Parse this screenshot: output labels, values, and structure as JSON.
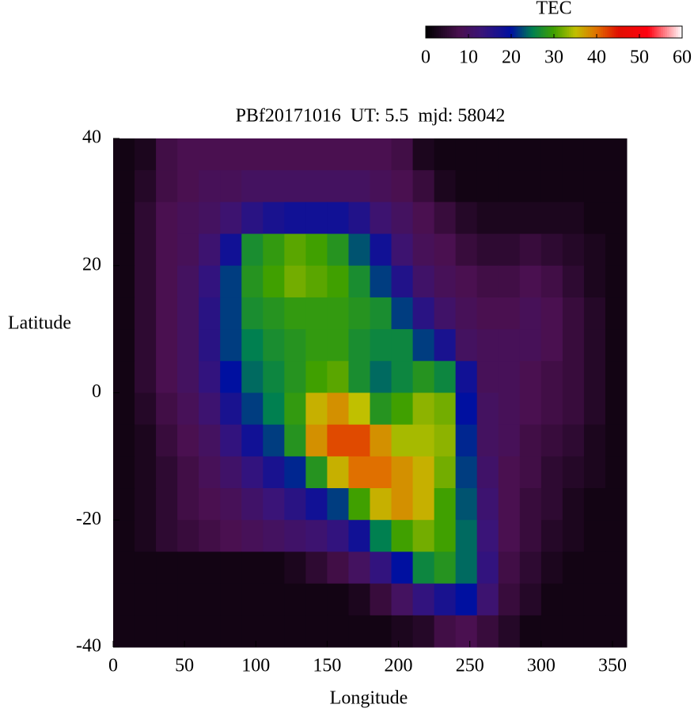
{
  "chart_data": {
    "type": "heatmap",
    "title": "PBf20171016  UT: 5.5  mjd: 58042",
    "xlabel": "Longitude",
    "ylabel": "Latitude",
    "xlim": [
      0,
      360
    ],
    "xticks": [
      0,
      50,
      100,
      150,
      200,
      250,
      300,
      350
    ],
    "ylim": [
      -40,
      40
    ],
    "yticks": [
      -40,
      -20,
      0,
      20,
      40
    ],
    "x_edges": [
      0,
      15,
      30,
      45,
      60,
      75,
      90,
      105,
      120,
      135,
      150,
      165,
      180,
      195,
      210,
      225,
      240,
      255,
      270,
      285,
      300,
      315,
      330,
      345,
      360
    ],
    "y_edges": [
      40,
      35,
      30,
      25,
      20,
      15,
      10,
      5,
      0,
      -5,
      -10,
      -15,
      -20,
      -25,
      -30,
      -35,
      -40
    ],
    "values": [
      [
        2,
        3,
        7,
        8,
        8,
        8,
        8,
        8,
        8,
        8,
        8,
        8,
        8,
        7,
        3,
        2,
        2,
        2,
        2,
        2,
        2,
        2,
        2,
        2
      ],
      [
        2,
        4,
        7,
        8,
        9,
        9,
        10,
        10,
        10,
        10,
        10,
        10,
        9,
        8,
        6,
        3,
        2,
        2,
        2,
        2,
        2,
        2,
        2,
        2
      ],
      [
        2,
        5,
        8,
        9,
        10,
        12,
        15,
        17,
        18,
        18,
        18,
        16,
        12,
        10,
        8,
        6,
        4,
        3,
        3,
        3,
        3,
        3,
        2,
        2
      ],
      [
        2,
        5,
        8,
        9,
        12,
        18,
        27,
        29,
        31,
        30,
        28,
        23,
        18,
        12,
        9,
        8,
        6,
        5,
        5,
        6,
        5,
        4,
        3,
        2
      ],
      [
        2,
        5,
        8,
        10,
        14,
        22,
        28,
        30,
        32,
        31,
        30,
        27,
        22,
        16,
        11,
        9,
        8,
        7,
        7,
        8,
        7,
        5,
        3,
        2
      ],
      [
        2,
        5,
        8,
        10,
        15,
        22,
        27,
        28,
        29,
        29,
        29,
        28,
        27,
        22,
        15,
        11,
        9,
        8,
        8,
        9,
        8,
        6,
        4,
        2
      ],
      [
        2,
        5,
        8,
        10,
        15,
        22,
        25,
        27,
        28,
        29,
        29,
        27,
        26,
        26,
        22,
        17,
        10,
        9,
        9,
        9,
        8,
        6,
        4,
        2
      ],
      [
        2,
        5,
        8,
        10,
        14,
        20,
        24,
        26,
        28,
        30,
        31,
        27,
        24,
        26,
        28,
        26,
        18,
        9,
        9,
        8,
        7,
        6,
        4,
        2
      ],
      [
        2,
        4,
        7,
        9,
        12,
        17,
        22,
        25,
        29,
        36,
        38,
        35,
        28,
        30,
        33,
        32,
        20,
        10,
        9,
        8,
        7,
        6,
        4,
        2
      ],
      [
        2,
        3,
        6,
        8,
        10,
        14,
        18,
        22,
        28,
        38,
        42,
        42,
        38,
        34,
        34,
        33,
        21,
        10,
        9,
        7,
        6,
        5,
        3,
        2
      ],
      [
        2,
        3,
        5,
        7,
        9,
        11,
        14,
        17,
        21,
        28,
        36,
        40,
        40,
        38,
        36,
        32,
        22,
        11,
        8,
        7,
        5,
        4,
        3,
        2
      ],
      [
        2,
        3,
        5,
        7,
        8,
        9,
        11,
        13,
        15,
        18,
        22,
        30,
        36,
        38,
        36,
        30,
        23,
        12,
        8,
        6,
        5,
        3,
        2,
        2
      ],
      [
        2,
        3,
        5,
        6,
        7,
        8,
        9,
        10,
        11,
        12,
        14,
        18,
        25,
        30,
        32,
        30,
        24,
        13,
        8,
        6,
        4,
        3,
        2,
        2
      ],
      [
        2,
        2,
        2,
        2,
        2,
        2,
        2,
        2,
        3,
        5,
        7,
        10,
        14,
        20,
        26,
        28,
        24,
        14,
        7,
        5,
        3,
        2,
        2,
        2
      ],
      [
        2,
        2,
        2,
        2,
        2,
        2,
        2,
        2,
        2,
        2,
        2,
        3,
        6,
        10,
        14,
        17,
        20,
        12,
        6,
        4,
        2,
        2,
        2,
        2
      ],
      [
        2,
        2,
        2,
        2,
        2,
        2,
        2,
        2,
        2,
        2,
        2,
        2,
        2,
        3,
        4,
        7,
        8,
        6,
        4,
        2,
        2,
        2,
        2,
        2
      ]
    ],
    "colormap": [
      [
        0,
        "#000000"
      ],
      [
        8,
        "#4a1050"
      ],
      [
        13,
        "#3a1478"
      ],
      [
        20,
        "#0010a0"
      ],
      [
        25,
        "#008050"
      ],
      [
        30,
        "#40a000"
      ],
      [
        35,
        "#c0c000"
      ],
      [
        40,
        "#e07000"
      ],
      [
        45,
        "#e01000"
      ],
      [
        52,
        "#ff0010"
      ],
      [
        60,
        "#ffffff"
      ]
    ],
    "colorbar": {
      "label": "TEC",
      "lim": [
        0,
        60
      ],
      "ticks": [
        0,
        10,
        20,
        30,
        40,
        50,
        60
      ]
    }
  }
}
